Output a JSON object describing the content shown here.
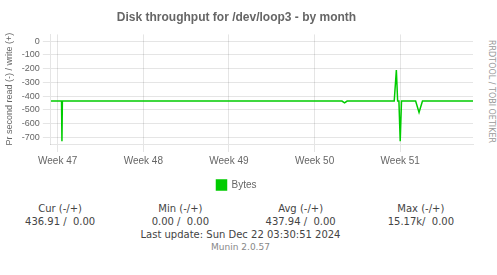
{
  "chart_data": {
    "type": "line",
    "title": "Disk throughput for /dev/loop3 - by month",
    "ylabel": "Pr second read (-) / write (+)",
    "x": [
      -0.08,
      0.045,
      0.05,
      0.055,
      0.1,
      3.32,
      3.35,
      3.38,
      3.9,
      3.93,
      3.955,
      3.97,
      3.985,
      4.0,
      4.015,
      4.03,
      4.18,
      4.22,
      4.26,
      4.85
    ],
    "series": [
      {
        "name": "Bytes",
        "color": "#00cc00",
        "values": [
          -437,
          -437,
          -730,
          -437,
          -437,
          -437,
          -450,
          -437,
          -437,
          -437,
          -210,
          -437,
          -437,
          -730,
          -437,
          -437,
          -437,
          -520,
          -437,
          -437
        ]
      }
    ],
    "xlim": [
      -0.08,
      4.85
    ],
    "xticks": [
      {
        "value": 0,
        "label": "Week 47"
      },
      {
        "value": 1,
        "label": "Week 48"
      },
      {
        "value": 2,
        "label": "Week 49"
      },
      {
        "value": 3,
        "label": "Week 50"
      },
      {
        "value": 4,
        "label": "Week 51"
      }
    ],
    "ylim": [
      -750,
      50
    ],
    "yticks": [
      0,
      -100,
      -200,
      -300,
      -400,
      -500,
      -600,
      -700
    ],
    "grid": true,
    "legend": "bottom",
    "annotations": [
      [
        "Cur (-/+)",
        "Min (-/+)",
        "Avg (-/+)",
        "Max (-/+)"
      ],
      [
        "436.91 /  0.00",
        "0.00 /  0.00",
        "437.94 /  0.00",
        "15.17k/  0.00"
      ],
      [
        "Last update: Sun Dec 22 03:30:51 2024"
      ],
      [
        "Munin 2.0.57"
      ],
      [
        "RRDTOOL / TOBI OETIKER"
      ]
    ]
  }
}
